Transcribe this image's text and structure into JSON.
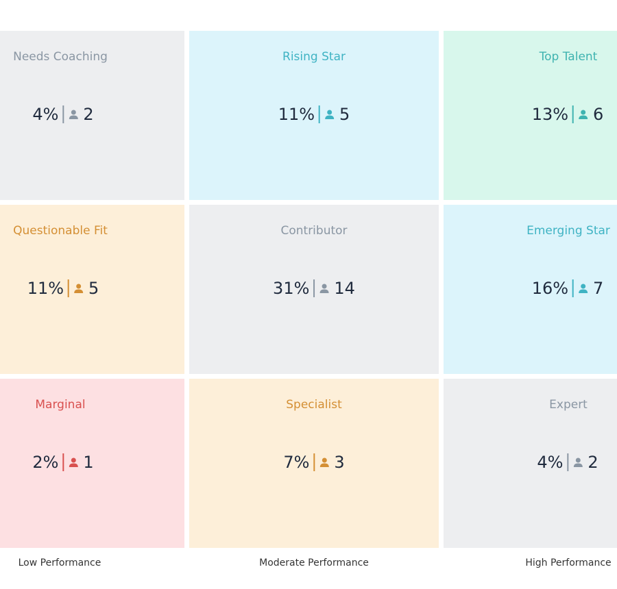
{
  "grid": {
    "cells": [
      {
        "label": "Needs Coaching",
        "percent": "4%",
        "count": 2,
        "background": "#edeef0",
        "accent": "#8a96a3"
      },
      {
        "label": "Rising Star",
        "percent": "11%",
        "count": 5,
        "background": "#dcf4fb",
        "accent": "#3fb3c3"
      },
      {
        "label": "Top Talent",
        "percent": "13%",
        "count": 6,
        "background": "#d8f7ec",
        "accent": "#3fb3b0"
      },
      {
        "label": "Questionable Fit",
        "percent": "11%",
        "count": 5,
        "background": "#fdefd9",
        "accent": "#d48f34"
      },
      {
        "label": "Contributor",
        "percent": "31%",
        "count": 14,
        "background": "#edeef0",
        "accent": "#8a96a3"
      },
      {
        "label": "Emerging Star",
        "percent": "16%",
        "count": 7,
        "background": "#dcf4fb",
        "accent": "#3fb3c3"
      },
      {
        "label": "Marginal",
        "percent": "2%",
        "count": 1,
        "background": "#fde0e2",
        "accent": "#d9504f"
      },
      {
        "label": "Specialist",
        "percent": "7%",
        "count": 3,
        "background": "#fdefd9",
        "accent": "#d48f34"
      },
      {
        "label": "Expert",
        "percent": "4%",
        "count": 2,
        "background": "#edeef0",
        "accent": "#8a96a3"
      }
    ],
    "x_labels": [
      "Low Performance",
      "Moderate Performance",
      "High Performance"
    ]
  }
}
